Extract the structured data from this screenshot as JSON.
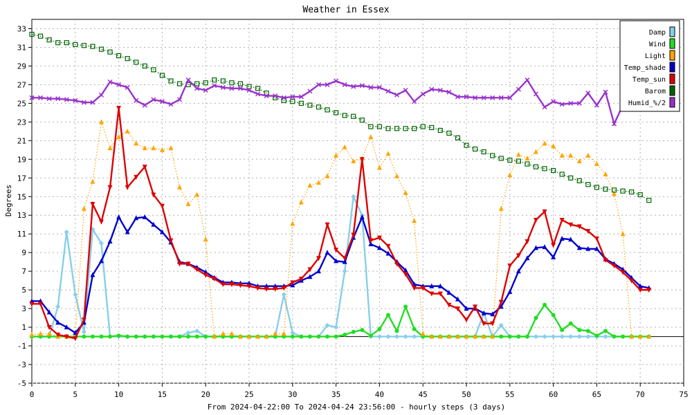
{
  "chart_data": {
    "type": "line",
    "title": "Weather in Essex",
    "xlabel": "From 2024-04-22:00 To 2024-04-24 23:56:00 - hourly steps (3 days)",
    "ylabel": "Degrees",
    "xlim": [
      0,
      75
    ],
    "ylim": [
      -5,
      34
    ],
    "xticks": [
      0,
      5,
      10,
      15,
      20,
      25,
      30,
      35,
      40,
      45,
      50,
      55,
      60,
      65,
      70,
      75
    ],
    "yticks": [
      -5,
      -3,
      -1,
      1,
      3,
      5,
      7,
      9,
      11,
      13,
      15,
      17,
      19,
      21,
      23,
      25,
      27,
      29,
      31,
      33
    ],
    "grid": true,
    "legend_position": "top-right",
    "series": [
      {
        "name": "Damp",
        "color": "#87CEEB",
        "marker": "diamond",
        "dotted": false,
        "x": [
          0,
          1,
          2,
          3,
          4,
          5,
          6,
          7,
          8,
          9,
          10,
          11,
          12,
          13,
          14,
          15,
          16,
          17,
          18,
          19,
          20,
          21,
          22,
          23,
          24,
          25,
          26,
          27,
          28,
          29,
          30,
          31,
          32,
          33,
          34,
          35,
          36,
          37,
          38,
          39,
          40,
          41,
          42,
          43,
          44,
          45,
          46,
          47,
          48,
          49,
          50,
          51,
          52,
          53,
          54,
          55,
          56,
          57,
          58,
          59,
          60,
          61,
          62,
          63,
          64,
          65,
          66,
          67,
          68,
          69,
          70,
          71
        ],
        "y": [
          0,
          0,
          0,
          3.2,
          11.2,
          4.5,
          0.5,
          11.5,
          10,
          0,
          0,
          0,
          0,
          0,
          0,
          0,
          0,
          0,
          0.4,
          0.6,
          0,
          0,
          0,
          0,
          0,
          0,
          0,
          0,
          0,
          4.5,
          0.4,
          0,
          0,
          0,
          1.2,
          1,
          7,
          15,
          13,
          0,
          0,
          0,
          0,
          0,
          0,
          0,
          0,
          0,
          0,
          0,
          0,
          0,
          2.5,
          0,
          1.2,
          0,
          0,
          0,
          0,
          0,
          0,
          0,
          0,
          0,
          0,
          0,
          0,
          0,
          0,
          0,
          0,
          0
        ]
      },
      {
        "name": "Wind",
        "color": "#22DD22",
        "marker": "circle",
        "dotted": false,
        "x": [
          0,
          1,
          2,
          3,
          4,
          5,
          6,
          7,
          8,
          9,
          10,
          11,
          12,
          13,
          14,
          15,
          16,
          17,
          18,
          19,
          20,
          21,
          22,
          23,
          24,
          25,
          26,
          27,
          28,
          29,
          30,
          31,
          32,
          33,
          34,
          35,
          36,
          37,
          38,
          39,
          40,
          41,
          42,
          43,
          44,
          45,
          46,
          47,
          48,
          49,
          50,
          51,
          52,
          53,
          54,
          55,
          56,
          57,
          58,
          59,
          60,
          61,
          62,
          63,
          64,
          65,
          66,
          67,
          68,
          69,
          70,
          71
        ],
        "y": [
          0,
          0,
          0,
          0,
          0,
          0,
          0,
          0,
          0,
          0,
          0.1,
          0,
          0,
          0,
          0,
          0,
          0,
          0,
          0,
          0,
          0,
          0,
          0,
          0,
          0,
          0,
          0,
          0,
          0,
          0,
          0,
          0,
          0,
          0,
          0,
          0,
          0.2,
          0.5,
          0.7,
          0.1,
          0.8,
          2.3,
          0.6,
          3.2,
          0.8,
          0,
          0,
          0,
          0,
          0,
          0,
          0,
          0,
          0,
          0,
          0,
          0,
          0,
          2,
          3.4,
          2.3,
          0.7,
          1.4,
          0.7,
          0.6,
          0.1,
          0.6,
          0,
          0,
          0,
          0,
          0
        ]
      },
      {
        "name": "Light",
        "color": "#FFA500",
        "marker": "triangle",
        "dotted": true,
        "x": [
          0,
          1,
          2,
          3,
          4,
          5,
          6,
          7,
          8,
          9,
          10,
          11,
          12,
          13,
          14,
          15,
          16,
          17,
          18,
          19,
          20,
          21,
          22,
          23,
          24,
          25,
          26,
          27,
          28,
          29,
          30,
          31,
          32,
          33,
          34,
          35,
          36,
          37,
          38,
          39,
          40,
          41,
          42,
          43,
          44,
          45,
          46,
          47,
          48,
          49,
          50,
          51,
          52,
          53,
          54,
          55,
          56,
          57,
          58,
          59,
          60,
          61,
          62,
          63,
          64,
          65,
          66,
          67,
          68,
          69,
          70,
          71
        ],
        "y": [
          0.2,
          0.3,
          0.3,
          0,
          0,
          0,
          13.7,
          16.6,
          23,
          20.2,
          21.4,
          22,
          20.7,
          20.2,
          20.2,
          20,
          20.2,
          16,
          14.2,
          15.2,
          10.4,
          0,
          0.3,
          0.3,
          0,
          0,
          0,
          0,
          0.3,
          0.3,
          12.1,
          14.4,
          16.2,
          16.5,
          17.2,
          19.4,
          20.3,
          18.8,
          19.1,
          21.4,
          18.1,
          19.6,
          17.2,
          15.4,
          12.4,
          0.3,
          0,
          0,
          0,
          0,
          0,
          0,
          0,
          0,
          13.7,
          17.3,
          19.5,
          19.1,
          19.8,
          20.7,
          20.4,
          19.4,
          19.4,
          18.8,
          19.4,
          18.5,
          17.4,
          15.3,
          11,
          0,
          0,
          0
        ]
      },
      {
        "name": "Temp_shade",
        "color": "#0000CC",
        "marker": "triangle",
        "dotted": false,
        "x": [
          0,
          1,
          2,
          3,
          4,
          5,
          6,
          7,
          8,
          9,
          10,
          11,
          12,
          13,
          14,
          15,
          16,
          17,
          18,
          19,
          20,
          21,
          22,
          23,
          24,
          25,
          26,
          27,
          28,
          29,
          30,
          31,
          32,
          33,
          34,
          35,
          36,
          37,
          38,
          39,
          40,
          41,
          42,
          43,
          44,
          45,
          46,
          47,
          48,
          49,
          50,
          51,
          52,
          53,
          54,
          55,
          56,
          57,
          58,
          59,
          60,
          61,
          62,
          63,
          64,
          65,
          66,
          67,
          68,
          69,
          70,
          71
        ],
        "y": [
          3.8,
          3.8,
          2.6,
          1.5,
          1,
          0.4,
          1.5,
          6.6,
          8.1,
          10.2,
          12.8,
          11.2,
          12.7,
          12.8,
          12,
          11.2,
          10.1,
          8,
          7.8,
          7.4,
          6.9,
          6.3,
          5.8,
          5.8,
          5.7,
          5.7,
          5.4,
          5.4,
          5.4,
          5.4,
          5.5,
          6,
          6.4,
          7,
          9,
          8.1,
          8,
          10.6,
          12.8,
          9.9,
          9.5,
          8.9,
          8,
          7.1,
          5.6,
          5.4,
          5.4,
          5.4,
          4.7,
          4,
          3,
          3,
          2.5,
          2.4,
          3.2,
          4.8,
          7,
          8.4,
          9.5,
          9.6,
          8.5,
          10.5,
          10.4,
          9.5,
          9.4,
          9.4,
          8.3,
          7.8,
          7.2,
          6.3,
          5.4,
          5.2
        ]
      },
      {
        "name": "Temp_sun",
        "color": "#DD0000",
        "marker": "triangle-down",
        "dotted": false,
        "x": [
          0,
          1,
          2,
          3,
          4,
          5,
          6,
          7,
          8,
          9,
          10,
          11,
          12,
          13,
          14,
          15,
          16,
          17,
          18,
          19,
          20,
          21,
          22,
          23,
          24,
          25,
          26,
          27,
          28,
          29,
          30,
          31,
          32,
          33,
          34,
          35,
          36,
          37,
          38,
          39,
          40,
          41,
          42,
          43,
          44,
          45,
          46,
          47,
          48,
          49,
          50,
          51,
          52,
          53,
          54,
          55,
          56,
          57,
          58,
          59,
          60,
          61,
          62,
          63,
          64,
          65,
          66,
          67,
          68,
          69,
          70,
          71
        ],
        "y": [
          3.5,
          3.5,
          1,
          0.2,
          0,
          -0.2,
          1.8,
          14.2,
          12.3,
          16,
          24.5,
          16,
          17.1,
          18.2,
          15.2,
          14,
          10.3,
          7.8,
          7.8,
          7.2,
          6.6,
          6.2,
          5.6,
          5.6,
          5.5,
          5.4,
          5.2,
          5.1,
          5.1,
          5.2,
          5.8,
          6.2,
          7.2,
          8.4,
          12,
          9.3,
          8.4,
          10.9,
          19,
          10.3,
          10.6,
          9.7,
          7.8,
          6.7,
          5.2,
          5.2,
          4.6,
          4.6,
          3.4,
          3,
          1.8,
          3.2,
          1.4,
          1.4,
          3.7,
          7.6,
          8.7,
          10.2,
          12.5,
          13.4,
          9.8,
          12.5,
          12,
          11.8,
          11.3,
          10.5,
          8.2,
          7.6,
          6.9,
          6,
          5,
          5
        ]
      },
      {
        "name": "Barom",
        "color": "#006400",
        "marker": "square",
        "dotted": true,
        "x": [
          0,
          1,
          2,
          3,
          4,
          5,
          6,
          7,
          8,
          9,
          10,
          11,
          12,
          13,
          14,
          15,
          16,
          17,
          18,
          19,
          20,
          21,
          22,
          23,
          24,
          25,
          26,
          27,
          28,
          29,
          30,
          31,
          32,
          33,
          34,
          35,
          36,
          37,
          38,
          39,
          40,
          41,
          42,
          43,
          44,
          45,
          46,
          47,
          48,
          49,
          50,
          51,
          52,
          53,
          54,
          55,
          56,
          57,
          58,
          59,
          60,
          61,
          62,
          63,
          64,
          65,
          66,
          67,
          68,
          69,
          70,
          71
        ],
        "y": [
          32.4,
          32.2,
          31.8,
          31.5,
          31.5,
          31.3,
          31.2,
          31.1,
          30.8,
          30.5,
          30.1,
          29.8,
          29.4,
          29,
          28.6,
          28,
          27.4,
          27.1,
          27,
          27.1,
          27.2,
          27.5,
          27.4,
          27.2,
          27.1,
          26.8,
          26.6,
          26.1,
          25.6,
          25.3,
          25.2,
          25,
          24.8,
          24.6,
          24.3,
          24,
          23.7,
          23.6,
          23.2,
          22.5,
          22.5,
          22.3,
          22.3,
          22.3,
          22.3,
          22.5,
          22.4,
          22.1,
          21.8,
          21.3,
          20.5,
          20.1,
          19.8,
          19.4,
          19.1,
          18.9,
          18.8,
          18.5,
          18.2,
          18,
          17.8,
          17.4,
          17,
          16.7,
          16.3,
          16,
          15.8,
          15.7,
          15.6,
          15.5,
          15.2,
          14.6
        ]
      },
      {
        "name": "Humid_%/2",
        "color": "#9932CC",
        "marker": "x",
        "dotted": false,
        "x": [
          0,
          1,
          2,
          3,
          4,
          5,
          6,
          7,
          8,
          9,
          10,
          11,
          12,
          13,
          14,
          15,
          16,
          17,
          18,
          19,
          20,
          21,
          22,
          23,
          24,
          25,
          26,
          27,
          28,
          29,
          30,
          31,
          32,
          33,
          34,
          35,
          36,
          37,
          38,
          39,
          40,
          41,
          42,
          43,
          44,
          45,
          46,
          47,
          48,
          49,
          50,
          51,
          52,
          53,
          54,
          55,
          56,
          57,
          58,
          59,
          60,
          61,
          62,
          63,
          64,
          65,
          66,
          67,
          68,
          69,
          70,
          71
        ],
        "y": [
          25.6,
          25.6,
          25.5,
          25.5,
          25.4,
          25.3,
          25.1,
          25.1,
          25.9,
          27.3,
          27,
          26.7,
          25.3,
          24.8,
          25.4,
          25.2,
          24.9,
          25.4,
          27.5,
          26.6,
          26.4,
          26.9,
          26.7,
          26.6,
          26.6,
          26.4,
          26,
          25.8,
          25.8,
          25.6,
          25.7,
          25.7,
          26.3,
          27,
          27,
          27.4,
          27,
          26.8,
          26.9,
          26.7,
          26.7,
          26.3,
          25.9,
          26.4,
          25.2,
          26,
          26.5,
          26.4,
          26.2,
          25.7,
          25.7,
          25.6,
          25.6,
          25.6,
          25.6,
          25.6,
          26.5,
          27.5,
          26,
          24.6,
          25.2,
          24.9,
          25,
          25,
          26.1,
          24.8,
          26.2,
          22.8,
          24.8,
          25.4,
          25.4,
          25.4
        ]
      }
    ]
  }
}
